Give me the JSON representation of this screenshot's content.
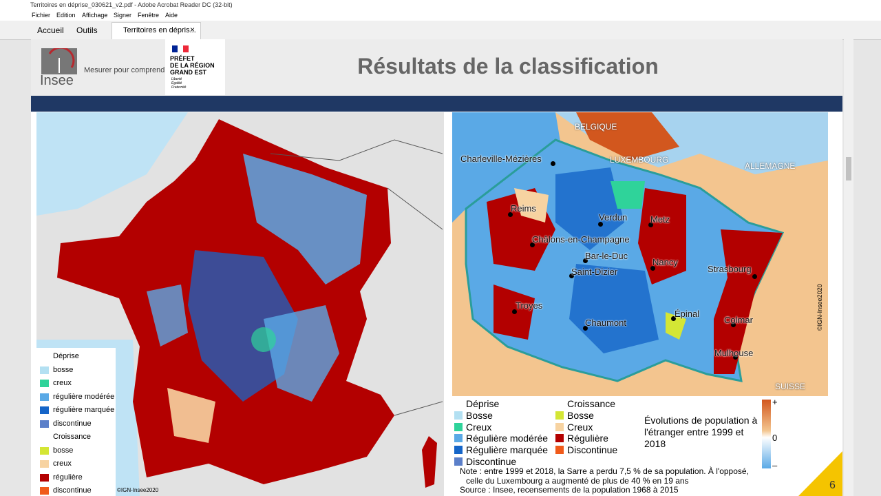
{
  "window": {
    "title": "Territoires en déprise_030621_v2.pdf - Adobe Acrobat Reader DC (32-bit)",
    "menu": [
      "Fichier",
      "Edition",
      "Affichage",
      "Signer",
      "Fenêtre",
      "Aide"
    ],
    "tabs": [
      "Accueil",
      "Outils"
    ],
    "document_tab": "Territoires en dépris...",
    "close": "×"
  },
  "slide": {
    "logo": "Insee",
    "tagline": "Mesurer pour comprendre",
    "prefet": [
      "PRÉFET",
      "DE LA RÉGION",
      "GRAND EST"
    ],
    "motto": [
      "Liberté",
      "Égalité",
      "Fraternité"
    ],
    "title": "Résultats de la classification",
    "page_number": "6"
  },
  "left_map": {
    "legend": [
      {
        "title": "Déprise",
        "items": [
          {
            "label": "bosse",
            "color": "#b3e0f2"
          },
          {
            "label": "creux",
            "color": "#2fd39a"
          },
          {
            "label": "régulière modérée",
            "color": "#5aa9e6"
          },
          {
            "label": "régulière marquée",
            "color": "#1565c8"
          },
          {
            "label": "discontinue",
            "color": "#5b7fc9"
          }
        ]
      },
      {
        "title": "Croissance",
        "items": [
          {
            "label": "bosse",
            "color": "#d4e635"
          },
          {
            "label": "creux",
            "color": "#f7d3a1"
          },
          {
            "label": "régulière",
            "color": "#b30000"
          },
          {
            "label": "discontinue",
            "color": "#f05a1a"
          }
        ]
      }
    ],
    "credit": "©IGN-Insee2020"
  },
  "right_map": {
    "countries": [
      "BELGIQUE",
      "LUXEMBOURG",
      "ALLEMAGNE",
      "SUISSE"
    ],
    "cities": [
      "Charleville-Mézières",
      "Reims",
      "Verdun",
      "Metz",
      "Châlons-en-Champagne",
      "Bar-le-Duc",
      "Saint-Dizier",
      "Nancy",
      "Strasbourg",
      "Troyes",
      "Épinal",
      "Chaumont",
      "Colmar",
      "Mulhouse"
    ],
    "credit": "©IGN-Insee2020",
    "legend": [
      {
        "title": "Déprise",
        "items": [
          {
            "label": "Bosse",
            "color": "#b3e0f2"
          },
          {
            "label": "Creux",
            "color": "#2fd39a"
          },
          {
            "label": "Régulière modérée",
            "color": "#5aa9e6"
          },
          {
            "label": "Régulière marquée",
            "color": "#1565c8"
          },
          {
            "label": "Discontinue",
            "color": "#5b7fc9"
          }
        ]
      },
      {
        "title": "Croissance",
        "items": [
          {
            "label": "Bosse",
            "color": "#d4e635"
          },
          {
            "label": "Creux",
            "color": "#f7d3a1"
          },
          {
            "label": "Régulière",
            "color": "#b30000"
          },
          {
            "label": "Discontinue",
            "color": "#f05a1a"
          }
        ]
      }
    ],
    "scale_title": "Évolutions de population à l'étranger entre 1999 et 2018",
    "scale_labels": [
      "+",
      "0",
      "–"
    ],
    "note": [
      "Note : entre 1999 et 2018, la Sarre a perdu 7,5 % de sa population. À l'opposé,",
      "celle du Luxembourg a augmenté de plus de 40 % en 19 ans",
      "Source : Insee, recensements de la population 1968 à 2015"
    ]
  }
}
